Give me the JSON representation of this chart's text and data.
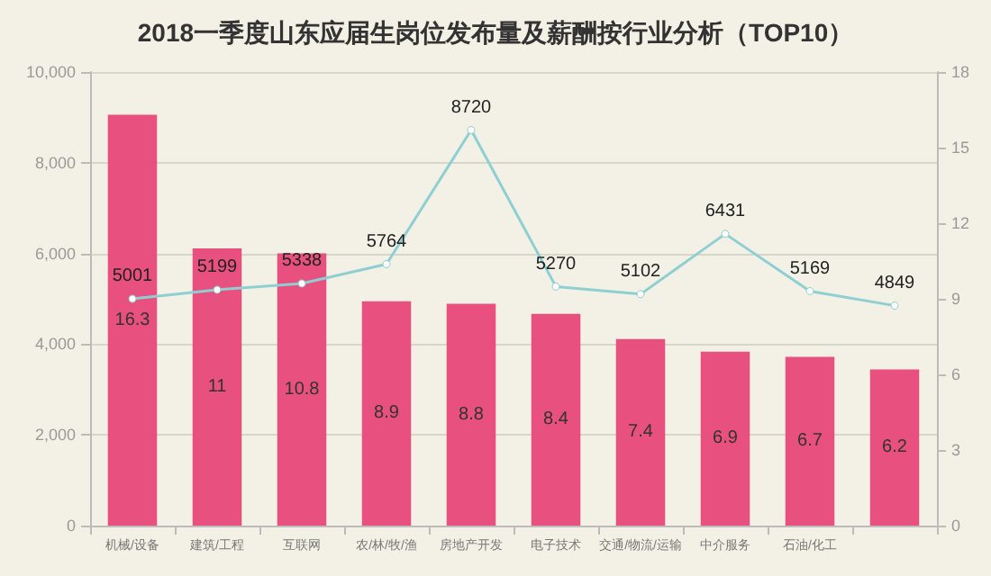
{
  "chart_data": {
    "type": "bar",
    "title": "2018一季度山东应届生岗位发布量及薪酬按行业分析（TOP10）",
    "categories": [
      "机械/设备",
      "建筑/工程",
      "互联网",
      "农/林/牧/渔",
      "房地产开发",
      "电子技术",
      "交通/物流/运输",
      "中介服务",
      "石油/化工",
      null
    ],
    "series": [
      {
        "axis": "y2",
        "color": "#e8507f",
        "values": [
          16.3,
          11,
          10.8,
          8.9,
          8.8,
          8.4,
          7.4,
          6.9,
          6.7,
          6.2
        ]
      },
      {
        "type": "line",
        "color": "#8ecfd2",
        "marker": "circle",
        "values": [
          5001,
          5199,
          5338,
          5764,
          8720,
          5270,
          5102,
          6431,
          5169,
          4849
        ]
      }
    ],
    "ylim": [
      0,
      10000
    ],
    "yticks": [
      {
        "value": 0,
        "label": "0"
      },
      {
        "value": 2000,
        "label": "2,000"
      },
      {
        "value": 4000,
        "label": "4,000"
      },
      {
        "value": 6000,
        "label": "6,000"
      },
      {
        "value": 8000,
        "label": "8,000"
      },
      {
        "value": 10000,
        "label": "10,000"
      }
    ],
    "y2lim": [
      0,
      18
    ],
    "y2ticks": [
      0,
      3,
      6,
      9,
      12,
      15,
      18
    ],
    "grid": "y",
    "data_labels": true
  }
}
